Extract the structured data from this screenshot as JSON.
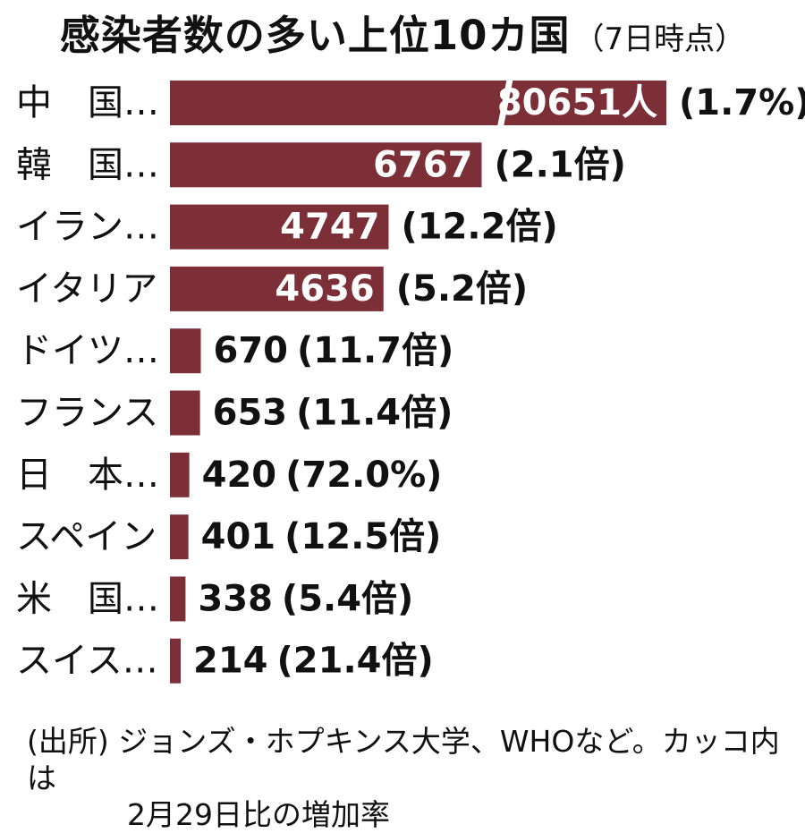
{
  "chart_data": {
    "type": "bar",
    "orientation": "horizontal",
    "title": "感染者数の多い上位10カ国",
    "subtitle": "（7日時点）",
    "categories": [
      "中　国…",
      "韓　国…",
      "イラン…",
      "イタリア",
      "ドイツ…",
      "フランス",
      "日　本…",
      "スペイン",
      "米　国…",
      "スイス…"
    ],
    "values": [
      80651,
      6767,
      4747,
      4636,
      670,
      653,
      420,
      401,
      338,
      214
    ],
    "value_labels": [
      "80651人",
      "6767",
      "4747",
      "4636",
      "670",
      "653",
      "420",
      "401",
      "338",
      "214"
    ],
    "change_labels": [
      "(1.7%)",
      "(2.1倍)",
      "(12.2倍)",
      "(5.2倍)",
      "(11.7倍)",
      "(11.4倍)",
      "(72.0%)",
      "(12.5倍)",
      "(5.4倍)",
      "(21.4倍)"
    ],
    "axis_break_on_first_bar": true,
    "bar_color": "#7d2f37",
    "grid": false,
    "legend": "none"
  },
  "source": {
    "line1": "(出所) ジョンズ・ホプキンス大学、WHOなど。カッコ内は",
    "line2": "2月29日比の増加率"
  }
}
